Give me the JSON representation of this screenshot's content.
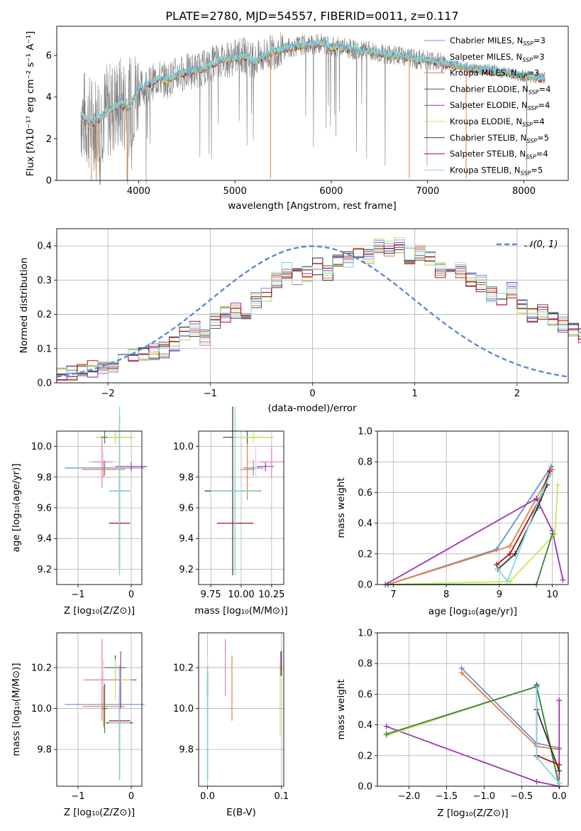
{
  "colors": {
    "chabrier_miles": "#6b8ed8",
    "salpeter_miles": "#e8c9dc",
    "kroupa_miles": "#e8803a",
    "chabrier_elodie": "#555555",
    "salpeter_elodie": "#9b36b0",
    "kroupa_elodie": "#c6e85a",
    "chabrier_stelib": "#333333",
    "salpeter_stelib": "#b01212",
    "kroupa_stelib": "#7fd6df",
    "gaussian": "#5b8bd6",
    "extra_pink": "#e87ab8",
    "extra_green": "#3f7f3f",
    "gray_spectrum": "#808080"
  },
  "chart_data": [
    {
      "id": "spectrum",
      "type": "line",
      "title": "PLATE=2780, MJD=54557, FIBERID=0011, z=0.117",
      "xlabel": "wavelength [Angstrom, rest frame]",
      "ylabel": "Flux [fλ10⁻¹⁷ erg cm⁻² s⁻¹ A⁻¹]",
      "xlim": [
        3150,
        8460
      ],
      "ylim": [
        0,
        7.4
      ],
      "xticks": [
        "4000",
        "5000",
        "6000",
        "7000",
        "8000"
      ],
      "xtick_values": [
        4000,
        5000,
        6000,
        7000,
        8000
      ],
      "yticks": [
        "0",
        "2",
        "4",
        "6"
      ],
      "ytick_values": [
        0,
        2,
        4,
        6
      ],
      "legend_position": "top-right",
      "legend": [
        {
          "label": "Chabrier MILES, N",
          "sub": "SSP",
          "suffix": "=3",
          "color_key": "chabrier_miles"
        },
        {
          "label": "Salpeter MILES, N",
          "sub": "SSP",
          "suffix": "=3",
          "color_key": "salpeter_miles"
        },
        {
          "label": "Kroupa MILES, N",
          "sub": "SSP",
          "suffix": "=3",
          "color_key": "kroupa_miles"
        },
        {
          "label": "Chabrier ELODIE, N",
          "sub": "SSP",
          "suffix": "=4",
          "color_key": "chabrier_elodie"
        },
        {
          "label": "Salpeter ELODIE, N",
          "sub": "SSP",
          "suffix": "=4",
          "color_key": "salpeter_elodie"
        },
        {
          "label": "Kroupa ELODIE, N",
          "sub": "SSP",
          "suffix": "=4",
          "color_key": "kroupa_elodie"
        },
        {
          "label": "Chabrier STELIB, N",
          "sub": "SSP",
          "suffix": "=5",
          "color_key": "chabrier_stelib"
        },
        {
          "label": "Salpeter STELIB, N",
          "sub": "SSP",
          "suffix": "=4",
          "color_key": "salpeter_stelib"
        },
        {
          "label": "Kroupa STELIB, N",
          "sub": "SSP",
          "suffix": "=5",
          "color_key": "kroupa_stelib"
        }
      ],
      "continuum": [
        [
          3400,
          3.2
        ],
        [
          3500,
          2.7
        ],
        [
          3600,
          3.0
        ],
        [
          3700,
          3.4
        ],
        [
          3800,
          3.7
        ],
        [
          3900,
          3.5
        ],
        [
          4000,
          4.4
        ],
        [
          4100,
          4.6
        ],
        [
          4200,
          4.9
        ],
        [
          4300,
          4.8
        ],
        [
          4400,
          5.1
        ],
        [
          4500,
          5.2
        ],
        [
          4600,
          5.3
        ],
        [
          4700,
          5.4
        ],
        [
          4800,
          5.7
        ],
        [
          4900,
          5.8
        ],
        [
          5000,
          5.9
        ],
        [
          5100,
          6.0
        ],
        [
          5200,
          5.7
        ],
        [
          5300,
          6.0
        ],
        [
          5400,
          6.2
        ],
        [
          5500,
          6.3
        ],
        [
          5600,
          6.4
        ],
        [
          5700,
          6.5
        ],
        [
          5800,
          6.5
        ],
        [
          5900,
          6.6
        ],
        [
          6000,
          6.4
        ],
        [
          6100,
          6.4
        ],
        [
          6200,
          6.3
        ],
        [
          6300,
          6.2
        ],
        [
          6400,
          6.2
        ],
        [
          6500,
          6.1
        ],
        [
          6600,
          6.0
        ],
        [
          6700,
          6.0
        ],
        [
          6800,
          5.9
        ],
        [
          6900,
          5.8
        ],
        [
          7000,
          5.8
        ],
        [
          7100,
          5.7
        ],
        [
          7200,
          5.6
        ],
        [
          7300,
          5.5
        ],
        [
          7400,
          5.4
        ],
        [
          7600,
          5.3
        ],
        [
          7800,
          5.2
        ],
        [
          8000,
          5.0
        ],
        [
          8200,
          4.9
        ]
      ],
      "xrange": [
        3400,
        8220
      ]
    },
    {
      "id": "residuals",
      "type": "bar",
      "xlabel": "(data-model)/error",
      "ylabel": "Normed distribution",
      "xlim": [
        -2.5,
        2.5
      ],
      "ylim": [
        0,
        0.45
      ],
      "xticks": [
        "−2",
        "−1",
        "0",
        "1",
        "2"
      ],
      "xtick_values": [
        -2,
        -1,
        0,
        1,
        2
      ],
      "yticks": [
        "0.0",
        "0.1",
        "0.2",
        "0.3",
        "0.4"
      ],
      "ytick_values": [
        0,
        0.1,
        0.2,
        0.3,
        0.4
      ],
      "legend_position": "top-right",
      "legend_label": "𝒩(0, 1)",
      "bin_width": 0.1,
      "bin_start": -2.5,
      "base_values": [
        0.025,
        0.03,
        0.035,
        0.04,
        0.045,
        0.055,
        0.07,
        0.08,
        0.085,
        0.09,
        0.095,
        0.11,
        0.14,
        0.16,
        0.13,
        0.18,
        0.2,
        0.21,
        0.19,
        0.24,
        0.26,
        0.3,
        0.33,
        0.31,
        0.32,
        0.34,
        0.32,
        0.35,
        0.36,
        0.37,
        0.37,
        0.4,
        0.39,
        0.4,
        0.37,
        0.38,
        0.36,
        0.33,
        0.34,
        0.33,
        0.3,
        0.29,
        0.26,
        0.25,
        0.27,
        0.22,
        0.2,
        0.21,
        0.19,
        0.17,
        0.16,
        0.14,
        0.12,
        0.1,
        0.1,
        0.085,
        0.08,
        0.07,
        0.06,
        0.05,
        0.045,
        0.04,
        0.035,
        0.03,
        0.025
      ]
    },
    {
      "id": "age-vs-Z",
      "type": "scatter",
      "xlabel": "Z [log₁₀(Z/Z⊙)]",
      "ylabel": "age  [log₁₀(age/yr)]",
      "xlim": [
        -1.4,
        0.2
      ],
      "ylim": [
        9.1,
        10.1
      ],
      "xticks": [
        "−1",
        "0"
      ],
      "xtick_values": [
        -1,
        0
      ],
      "yticks": [
        "9.2",
        "9.4",
        "9.6",
        "9.8",
        "10.0"
      ],
      "ytick_values": [
        9.2,
        9.4,
        9.6,
        9.8,
        10.0
      ]
    },
    {
      "id": "age-vs-mass",
      "type": "scatter",
      "xlabel": "mass [log₁₀(M/M⊙)]",
      "xlim": [
        9.65,
        10.35
      ],
      "ylim": [
        9.1,
        10.1
      ],
      "xticks": [
        "9.75",
        "10.00",
        "10.25"
      ],
      "xtick_values": [
        9.75,
        10.0,
        10.25
      ],
      "yticks": [
        "9.2",
        "9.4",
        "9.6",
        "9.8",
        "10.0"
      ],
      "ytick_values": [
        9.2,
        9.4,
        9.6,
        9.8,
        10.0
      ]
    },
    {
      "id": "mass-weight-vs-age",
      "type": "line",
      "xlabel": "age  [log₁₀(age/yr)]",
      "ylabel": "mass weight",
      "xlim": [
        6.7,
        10.3
      ],
      "ylim": [
        0,
        1.0
      ],
      "xticks": [
        "7",
        "8",
        "9",
        "10"
      ],
      "xtick_values": [
        7,
        8,
        9,
        10
      ],
      "yticks": [
        "0.0",
        "0.2",
        "0.4",
        "0.6",
        "0.8",
        "1.0"
      ],
      "ytick_values": [
        0,
        0.2,
        0.4,
        0.6,
        0.8,
        1.0
      ]
    },
    {
      "id": "mass-vs-Z",
      "type": "scatter",
      "xlabel": "Z [log₁₀(Z/Z⊙)]",
      "ylabel": "mass [log₁₀(M/M⊙)]",
      "xlim": [
        -1.4,
        0.2
      ],
      "ylim": [
        9.62,
        10.37
      ],
      "xticks": [
        "−1",
        "0"
      ],
      "xtick_values": [
        -1,
        0
      ],
      "yticks": [
        "9.8",
        "10.0",
        "10.2"
      ],
      "ytick_values": [
        9.8,
        10.0,
        10.2
      ]
    },
    {
      "id": "mass-vs-EBV",
      "type": "scatter",
      "xlabel": "E(B-V)",
      "xlim": [
        -0.012,
        0.103
      ],
      "ylim": [
        9.62,
        10.37
      ],
      "xticks": [
        "0.0",
        "0.1"
      ],
      "xtick_values": [
        0,
        0.1
      ],
      "yticks": [
        "9.8",
        "10.0",
        "10.2"
      ],
      "ytick_values": [
        9.8,
        10.0,
        10.2
      ]
    },
    {
      "id": "mass-weight-vs-Z",
      "type": "line",
      "xlabel": "Z [log₁₀(Z/Z⊙)]",
      "ylabel": "mass weight",
      "xlim": [
        -2.42,
        0.12
      ],
      "ylim": [
        0,
        1.0
      ],
      "xticks": [
        "−2.0",
        "−1.5",
        "−1.0",
        "−0.5",
        "0.0"
      ],
      "xtick_values": [
        -2.0,
        -1.5,
        -1.0,
        -0.5,
        0.0
      ],
      "yticks": [
        "0.0",
        "0.2",
        "0.4",
        "0.6",
        "0.8",
        "1.0"
      ],
      "ytick_values": [
        0,
        0.2,
        0.4,
        0.6,
        0.8,
        1.0
      ]
    }
  ],
  "panel_points": {
    "age_Z": [
      {
        "c": "chabrier_miles",
        "x": -0.5,
        "y": 9.86,
        "xe": 0.75,
        "ye": 0.05
      },
      {
        "c": "salpeter_miles",
        "x": -0.52,
        "y": 9.9,
        "xe": 0.3,
        "ye": 0.06
      },
      {
        "c": "kroupa_miles",
        "x": -0.52,
        "y": 9.85,
        "xe": 0.4,
        "ye": 0.05
      },
      {
        "c": "chabrier_elodie",
        "x": -0.3,
        "y": 10.06,
        "xe": 0.35,
        "ye": 0.04
      },
      {
        "c": "salpeter_elodie",
        "x": 0.0,
        "y": 9.87,
        "xe": 0.3,
        "ye": 0.03
      },
      {
        "c": "kroupa_elodie",
        "x": -0.3,
        "y": 10.06,
        "xe": 0.35,
        "ye": 0.04
      },
      {
        "c": "chabrier_stelib",
        "x": -0.22,
        "y": 9.71,
        "xe": 0.2,
        "ye": 0.5
      },
      {
        "c": "salpeter_stelib",
        "x": -0.22,
        "y": 9.5,
        "xe": 0.2,
        "ye": 0.3
      },
      {
        "c": "kroupa_stelib",
        "x": -0.22,
        "y": 9.71,
        "xe": 0.2,
        "ye": 0.55
      },
      {
        "c": "extra_pink",
        "x": -0.55,
        "y": 9.9,
        "xe": 0.2,
        "ye": 0.17
      },
      {
        "c": "extra_green",
        "x": -0.5,
        "y": 10.06,
        "xe": 0.05,
        "ye": 0.04
      }
    ],
    "age_mass": [
      {
        "c": "chabrier_miles",
        "x": 10.1,
        "y": 9.86,
        "xe": 0.08,
        "ye": 0.05
      },
      {
        "c": "salpeter_miles",
        "x": 10.12,
        "y": 9.9,
        "xe": 0.08,
        "ye": 0.1
      },
      {
        "c": "kroupa_miles",
        "x": 10.05,
        "y": 9.85,
        "xe": 0.06,
        "ye": 0.2
      },
      {
        "c": "chabrier_elodie",
        "x": 10.05,
        "y": 10.06,
        "xe": 0.2,
        "ye": 0.04
      },
      {
        "c": "salpeter_elodie",
        "x": 10.2,
        "y": 9.87,
        "xe": 0.07,
        "ye": 0.03
      },
      {
        "c": "kroupa_elodie",
        "x": 10.1,
        "y": 10.06,
        "xe": 0.17,
        "ye": 0.04
      },
      {
        "c": "chabrier_stelib",
        "x": 9.93,
        "y": 9.71,
        "xe": 0.23,
        "ye": 0.55
      },
      {
        "c": "salpeter_stelib",
        "x": 9.95,
        "y": 9.5,
        "xe": 0.15,
        "ye": 0.3
      },
      {
        "c": "kroupa_stelib",
        "x": 9.95,
        "y": 9.71,
        "xe": 0.2,
        "ye": 0.55
      },
      {
        "c": "extra_pink",
        "x": 10.25,
        "y": 9.9,
        "xe": 0.1,
        "ye": 0.1
      }
    ],
    "mass_Z": [
      {
        "c": "chabrier_miles",
        "x": -0.5,
        "y": 10.02,
        "xe": 0.75,
        "ye": 0.1
      },
      {
        "c": "salpeter_miles",
        "x": -0.52,
        "y": 10.14,
        "xe": 0.3,
        "ye": 0.1
      },
      {
        "c": "kroupa_miles",
        "x": -0.52,
        "y": 10.01,
        "xe": 0.4,
        "ye": 0.1
      },
      {
        "c": "chabrier_elodie",
        "x": -0.3,
        "y": 10.2,
        "xe": 0.2,
        "ye": 0.06
      },
      {
        "c": "salpeter_elodie",
        "x": -0.2,
        "y": 10.14,
        "xe": 0.3,
        "ye": 0.14
      },
      {
        "c": "kroupa_elodie",
        "x": -0.3,
        "y": 10.14,
        "xe": 0.3,
        "ye": 0.1
      },
      {
        "c": "chabrier_stelib",
        "x": -0.22,
        "y": 9.93,
        "xe": 0.25,
        "ye": 0.28
      },
      {
        "c": "salpeter_stelib",
        "x": -0.22,
        "y": 9.94,
        "xe": 0.2,
        "ye": 0.16
      },
      {
        "c": "kroupa_stelib",
        "x": -0.22,
        "y": 9.93,
        "xe": 0.2,
        "ye": 0.28
      },
      {
        "c": "extra_pink",
        "x": -0.55,
        "y": 10.14,
        "xe": 0.35,
        "ye": 0.2
      },
      {
        "c": "extra_green",
        "x": -0.5,
        "y": 10.0,
        "xe": 0.05,
        "ye": 0.12
      }
    ],
    "mass_EBV": [
      {
        "c": "chabrier_miles",
        "x": 0.0,
        "y": 10.02,
        "ye": 0.1
      },
      {
        "c": "salpeter_miles",
        "x": 0.0,
        "y": 10.14,
        "ye": 0.1
      },
      {
        "c": "kroupa_miles",
        "x": 0.033,
        "y": 10.1,
        "ye": 0.16
      },
      {
        "c": "chabrier_elodie",
        "x": 0.1,
        "y": 10.22,
        "ye": 0.06
      },
      {
        "c": "salpeter_elodie",
        "x": 0.099,
        "y": 10.22,
        "ye": 0.06
      },
      {
        "c": "kroupa_elodie",
        "x": 0.098,
        "y": 10.05,
        "ye": 0.18
      },
      {
        "c": "chabrier_stelib",
        "x": 0.0,
        "y": 9.93,
        "ye": 0.28
      },
      {
        "c": "salpeter_stelib",
        "x": 0.0,
        "y": 10.12,
        "ye": 0.06
      },
      {
        "c": "kroupa_stelib",
        "x": 0.0,
        "y": 9.93,
        "ye": 0.28
      },
      {
        "c": "extra_pink",
        "x": 0.024,
        "y": 10.2,
        "ye": 0.14
      }
    ],
    "mw_age": [
      {
        "c": "chabrier_miles",
        "pts": [
          [
            6.9,
            0.0
          ],
          [
            8.95,
            0.23
          ],
          [
            9.98,
            0.77
          ]
        ]
      },
      {
        "c": "kroupa_miles",
        "pts": [
          [
            6.9,
            0.0
          ],
          [
            9.2,
            0.25
          ],
          [
            10.0,
            0.75
          ]
        ]
      },
      {
        "c": "salpeter_elodie",
        "pts": [
          [
            6.85,
            0.0
          ],
          [
            9.7,
            0.56
          ],
          [
            10.0,
            0.35
          ],
          [
            10.2,
            0.03
          ]
        ]
      },
      {
        "c": "kroupa_elodie",
        "pts": [
          [
            6.9,
            0.0
          ],
          [
            9.2,
            0.02
          ],
          [
            10.05,
            0.33
          ],
          [
            10.1,
            0.65
          ]
        ]
      },
      {
        "c": "extra_green",
        "pts": [
          [
            6.9,
            0.0
          ],
          [
            9.7,
            0.0
          ],
          [
            10.0,
            0.33
          ]
        ]
      },
      {
        "c": "chabrier_stelib",
        "pts": [
          [
            8.97,
            0.1
          ],
          [
            9.3,
            0.2
          ],
          [
            9.72,
            0.5
          ],
          [
            9.9,
            0.65
          ]
        ]
      },
      {
        "c": "salpeter_stelib",
        "pts": [
          [
            8.95,
            0.13
          ],
          [
            9.2,
            0.2
          ],
          [
            9.75,
            0.55
          ],
          [
            9.95,
            0.74
          ]
        ]
      },
      {
        "c": "kroupa_stelib",
        "pts": [
          [
            8.98,
            0.1
          ],
          [
            9.15,
            0.02
          ],
          [
            9.8,
            0.6
          ],
          [
            9.97,
            0.72
          ]
        ]
      }
    ],
    "mw_Z": [
      {
        "c": "chabrier_miles",
        "pts": [
          [
            -1.3,
            0.77
          ],
          [
            -0.3,
            0.28
          ],
          [
            0.0,
            0.25
          ]
        ]
      },
      {
        "c": "kroupa_miles",
        "pts": [
          [
            -1.3,
            0.74
          ],
          [
            -0.3,
            0.26
          ],
          [
            0.0,
            0.24
          ]
        ]
      },
      {
        "c": "salpeter_elodie",
        "pts": [
          [
            -2.3,
            0.39
          ],
          [
            -0.3,
            0.03
          ],
          [
            0.0,
            0.0
          ],
          [
            0.0,
            0.56
          ]
        ]
      },
      {
        "c": "kroupa_elodie",
        "pts": [
          [
            -2.3,
            0.33
          ],
          [
            -0.3,
            0.65
          ],
          [
            0.0,
            0.02
          ]
        ]
      },
      {
        "c": "extra_green",
        "pts": [
          [
            -2.3,
            0.34
          ],
          [
            -0.3,
            0.65
          ],
          [
            0.0,
            0.0
          ]
        ]
      },
      {
        "c": "chabrier_stelib",
        "pts": [
          [
            -0.3,
            0.66
          ],
          [
            -0.3,
            0.5
          ],
          [
            0.0,
            0.1
          ]
        ]
      },
      {
        "c": "salpeter_stelib",
        "pts": [
          [
            -0.3,
            0.5
          ],
          [
            -0.3,
            0.2
          ],
          [
            0.0,
            0.14
          ]
        ]
      },
      {
        "c": "kroupa_stelib",
        "pts": [
          [
            -0.3,
            0.64
          ],
          [
            -0.3,
            0.19
          ],
          [
            0.0,
            0.02
          ]
        ]
      }
    ]
  }
}
